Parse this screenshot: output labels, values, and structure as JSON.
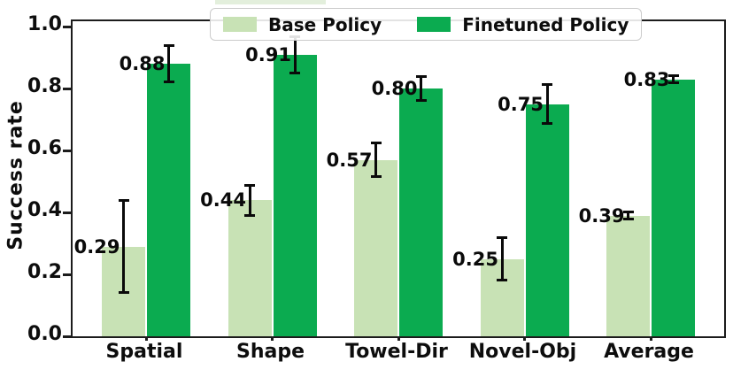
{
  "chart_data": {
    "type": "bar",
    "title": "",
    "xlabel": "",
    "ylabel": "Success rate",
    "categories": [
      "Spatial",
      "Shape",
      "Towel-Dir",
      "Novel-Obj",
      "Average"
    ],
    "series": [
      {
        "name": "Base Policy",
        "color": "#c8e2b5",
        "values": [
          0.29,
          0.44,
          0.57,
          0.25,
          0.39
        ],
        "errors": [
          0.15,
          0.05,
          0.055,
          0.07,
          0.012
        ],
        "value_labels": [
          "0.29",
          "0.44",
          "0.57",
          "0.25",
          "0.39"
        ]
      },
      {
        "name": "Finetuned Policy",
        "color": "#0bab50",
        "values": [
          0.88,
          0.91,
          0.8,
          0.75,
          0.83
        ],
        "errors": [
          0.06,
          0.06,
          0.04,
          0.065,
          0.012
        ],
        "value_labels": [
          "0.88",
          "0.91",
          "0.80",
          "0.75",
          "0.83"
        ]
      }
    ],
    "ylim": [
      0,
      1.02
    ],
    "yticks": [
      0.0,
      0.2,
      0.4,
      0.6,
      0.8,
      1.0
    ],
    "ytick_labels": [
      "0.0",
      "0.2",
      "0.4",
      "0.6",
      "0.8",
      "1.0"
    ],
    "grid": false,
    "legend_position": "top-center",
    "error_bar_color": "#0a0a0a",
    "axis_color": "#1c1c1c",
    "text_color": "#0d0d0d",
    "background": "#ffffff"
  }
}
